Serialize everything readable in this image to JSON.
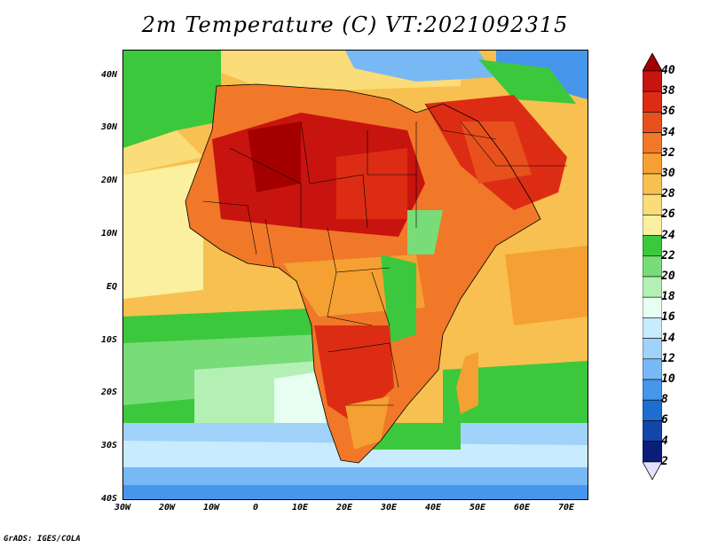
{
  "title": "2m Temperature (C) VT:2021092315",
  "credit": "GrADS: IGES/COLA",
  "map": {
    "lon_range": [
      -30,
      75
    ],
    "lat_range": [
      -40,
      45
    ],
    "x_ticks": [
      "30W",
      "20W",
      "10W",
      "0",
      "10E",
      "20E",
      "30E",
      "40E",
      "50E",
      "60E",
      "70E"
    ],
    "y_ticks": [
      "40N",
      "30N",
      "20N",
      "10N",
      "EQ",
      "10S",
      "20S",
      "30S",
      "40S"
    ]
  },
  "colorbar": {
    "labels": [
      "40",
      "38",
      "36",
      "34",
      "32",
      "30",
      "28",
      "26",
      "24",
      "22",
      "20",
      "18",
      "16",
      "14",
      "12",
      "10",
      "8",
      "6",
      "4",
      "2"
    ],
    "colors": [
      "#a50000",
      "#c8140f",
      "#dc2d14",
      "#e8501e",
      "#f07828",
      "#f5a032",
      "#f8c050",
      "#fadc78",
      "#fbefa0",
      "#3cc83c",
      "#78dc78",
      "#b4f0b4",
      "#e6fff0",
      "#c8ebff",
      "#a0d2fa",
      "#78b9f5",
      "#4696eb",
      "#1e6ed2",
      "#1446aa",
      "#0a1e78"
    ],
    "end_low": "#e6e0ff"
  }
}
